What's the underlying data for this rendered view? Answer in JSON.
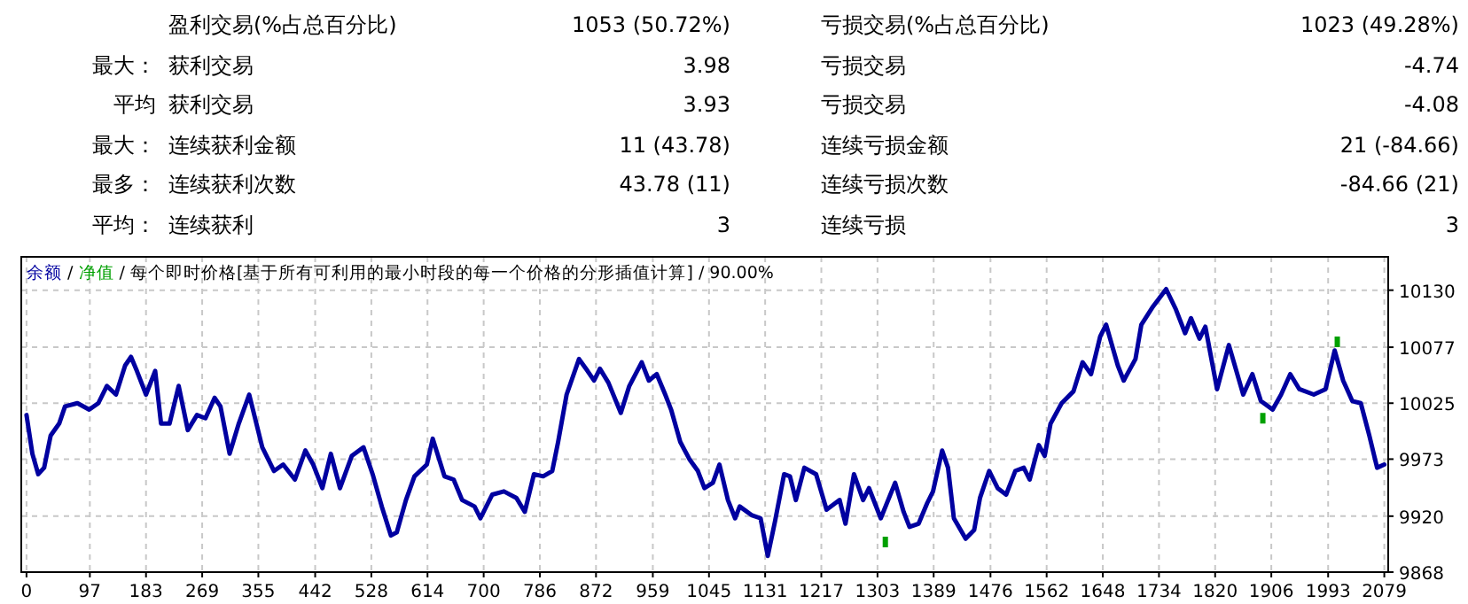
{
  "chart_data": [
    {
      "type": "other",
      "annotations": [
        "盈利交易(%占总百分比)",
        "1053 (50.72%)",
        "亏损交易(%占总百分比)",
        "1023 (49.28%)",
        "最大：",
        "获利交易",
        "3.98",
        "亏损交易",
        "-4.74",
        "平均",
        "获利交易",
        "3.93",
        "亏损交易",
        "-4.08",
        "最大：",
        "连续获利金额",
        "11 (43.78)",
        "连续亏损金额",
        "21 (-84.66)",
        "最多：",
        "连续获利次数",
        "43.78 (11)",
        "连续亏损次数",
        "-84.66 (21)",
        "平均：",
        "连续获利",
        "3",
        "连续亏损",
        "3"
      ]
    },
    {
      "type": "line",
      "annotations": [
        "/",
        "/"
      ],
      "title": "每个即时价格[基于所有可利用的最小时段的每一个价格的分形插值计算] / 90.00%",
      "legend": "top left",
      "grid": true,
      "line_style": "solid",
      "marker": "none",
      "xlim": [
        -8,
        2085
      ],
      "ylim": [
        9868,
        10161
      ],
      "xticks": [
        0,
        97,
        183,
        269,
        355,
        442,
        528,
        614,
        700,
        786,
        872,
        959,
        1045,
        1131,
        1217,
        1303,
        1389,
        1476,
        1562,
        1648,
        1734,
        1820,
        1906,
        1993,
        2079
      ],
      "yticks": [
        9868,
        9920,
        9973,
        10025,
        10077,
        10130
      ],
      "series": [
        {
          "name": "净值",
          "type": "scatter",
          "marker": "square",
          "color": "#00a000",
          "x": [
            1315,
            1893,
            2007
          ],
          "values": [
            9896,
            10011,
            10082
          ]
        },
        {
          "name": "余额",
          "color": "#0000a0",
          "x": [
            0,
            9,
            18,
            27,
            37,
            50,
            59,
            78,
            96,
            110,
            123,
            137,
            151,
            160,
            169,
            183,
            197,
            206,
            219,
            233,
            247,
            261,
            274,
            288,
            297,
            311,
            325,
            341,
            361,
            379,
            393,
            411,
            427,
            439,
            453,
            466,
            480,
            498,
            516,
            530,
            544,
            558,
            567,
            581,
            594,
            613,
            622,
            640,
            654,
            667,
            686,
            695,
            713,
            731,
            750,
            763,
            777,
            791,
            805,
            814,
            827,
            846,
            859,
            869,
            878,
            891,
            910,
            923,
            942,
            953,
            965,
            978,
            987,
            1001,
            1015,
            1028,
            1038,
            1051,
            1061,
            1074,
            1085,
            1092,
            1110,
            1124,
            1135,
            1146,
            1160,
            1169,
            1178,
            1191,
            1209,
            1225,
            1245,
            1254,
            1267,
            1281,
            1290,
            1308,
            1330,
            1343,
            1352,
            1366,
            1379,
            1388,
            1402,
            1411,
            1420,
            1438,
            1451,
            1460,
            1474,
            1487,
            1500,
            1514,
            1527,
            1536,
            1550,
            1559,
            1568,
            1585,
            1603,
            1617,
            1630,
            1644,
            1653,
            1671,
            1680,
            1698,
            1707,
            1725,
            1745,
            1760,
            1774,
            1783,
            1796,
            1805,
            1823,
            1841,
            1863,
            1877,
            1890,
            1908,
            1921,
            1935,
            1949,
            1971,
            1989,
            2003,
            2016,
            2030,
            2043,
            2056,
            2068,
            2079
          ],
          "values": [
            10014,
            9978,
            9959,
            9965,
            9995,
            10006,
            10022,
            10025,
            10019,
            10025,
            10041,
            10033,
            10060,
            10068,
            10055,
            10033,
            10055,
            10006,
            10006,
            10041,
            10000,
            10014,
            10011,
            10030,
            10022,
            9978,
            10006,
            10033,
            9984,
            9962,
            9968,
            9954,
            9981,
            9968,
            9946,
            9978,
            9946,
            9976,
            9984,
            9959,
            9929,
            9902,
            9905,
            9935,
            9957,
            9968,
            9992,
            9957,
            9954,
            9935,
            9929,
            9918,
            9940,
            9943,
            9937,
            9924,
            9959,
            9957,
            9962,
            9989,
            10033,
            10066,
            10055,
            10046,
            10057,
            10044,
            10016,
            10041,
            10063,
            10046,
            10052,
            10033,
            10019,
            9989,
            9973,
            9962,
            9946,
            9951,
            9968,
            9935,
            9918,
            9929,
            9921,
            9918,
            9883,
            9915,
            9959,
            9957,
            9935,
            9965,
            9959,
            9926,
            9935,
            9913,
            9959,
            9935,
            9946,
            9918,
            9951,
            9924,
            9910,
            9913,
            9932,
            9943,
            9981,
            9965,
            9918,
            9899,
            9907,
            9937,
            9962,
            9946,
            9940,
            9962,
            9965,
            9954,
            9986,
            9976,
            10006,
            10025,
            10036,
            10063,
            10052,
            10087,
            10098,
            10060,
            10046,
            10066,
            10098,
            10115,
            10131,
            10112,
            10090,
            10104,
            10085,
            10096,
            10038,
            10079,
            10033,
            10052,
            10027,
            10019,
            10033,
            10052,
            10038,
            10033,
            10038,
            10074,
            10046,
            10027,
            10025,
            9995,
            9965,
            9968
          ]
        }
      ]
    }
  ]
}
